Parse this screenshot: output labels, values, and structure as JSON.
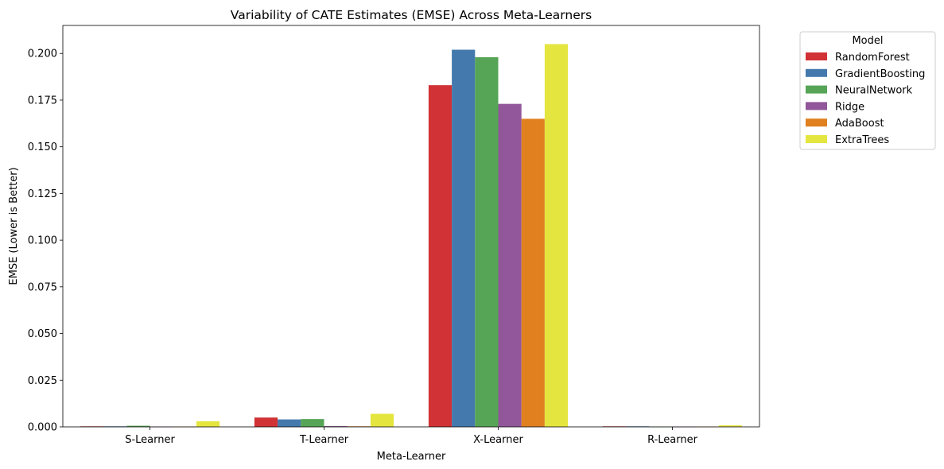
{
  "chart_data": {
    "type": "bar",
    "title": "Variability of CATE Estimates (EMSE) Across Meta-Learners",
    "xlabel": "Meta-Learner",
    "ylabel": "EMSE (Lower is Better)",
    "ylim": [
      0,
      0.215
    ],
    "yticks": [
      0.0,
      0.025,
      0.05,
      0.075,
      0.1,
      0.125,
      0.15,
      0.175,
      0.2
    ],
    "ytick_labels": [
      "0.000",
      "0.025",
      "0.050",
      "0.075",
      "0.100",
      "0.125",
      "0.150",
      "0.175",
      "0.200"
    ],
    "categories": [
      "S-Learner",
      "T-Learner",
      "X-Learner",
      "R-Learner"
    ],
    "legend_title": "Model",
    "legend_position": "outside top-right",
    "grid": false,
    "series": [
      {
        "name": "RandomForest",
        "color": "#d03235",
        "values": [
          0.0003,
          0.005,
          0.183,
          0.0003
        ]
      },
      {
        "name": "GradientBoosting",
        "color": "#4479ad",
        "values": [
          0.0003,
          0.004,
          0.202,
          0.0003
        ]
      },
      {
        "name": "NeuralNetwork",
        "color": "#56a556",
        "values": [
          0.0006,
          0.0042,
          0.198,
          0.0001
        ]
      },
      {
        "name": "Ridge",
        "color": "#91579a",
        "values": [
          0.0001,
          0.0004,
          0.173,
          0.0001
        ]
      },
      {
        "name": "AdaBoost",
        "color": "#e0801f",
        "values": [
          0.0001,
          0.0003,
          0.165,
          0.0001
        ]
      },
      {
        "name": "ExtraTrees",
        "color": "#e5e540",
        "values": [
          0.003,
          0.007,
          0.205,
          0.0008
        ]
      }
    ]
  }
}
